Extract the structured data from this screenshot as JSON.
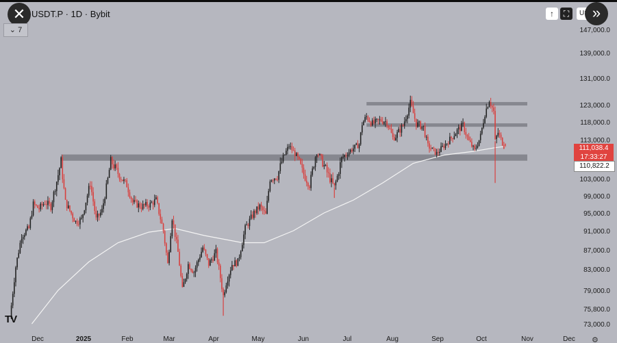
{
  "header": {
    "symbol_line": "USDT.P · 1D · Bybit",
    "indicator_count": "7",
    "close_icon": "close-icon",
    "expand_icon": "chevrons-right-icon",
    "currency_short": "US"
  },
  "price_tags": {
    "last_price": "111,038.4",
    "countdown": "17:33:27",
    "ma_value": "110,822.2"
  },
  "colors": {
    "background": "#b6b7bf",
    "up": "#222222",
    "down": "#d8403e",
    "ma": "#f4f4f4",
    "zone": "#7e7f86"
  },
  "chart_data": {
    "type": "candlestick",
    "x_ticks": [
      "Dec",
      "2025",
      "Feb",
      "Mar",
      "Apr",
      "May",
      "Jun",
      "Jul",
      "Aug",
      "Sep",
      "Oct",
      "Nov",
      "Dec"
    ],
    "y_ticks": [
      "147,000.0",
      "139,000.0",
      "131,000.0",
      "123,000.0",
      "118,000.0",
      "113,000.0",
      "107,000.0",
      "103,000.0",
      "99,000.0",
      "95,000.0",
      "91,000.0",
      "87,000.0",
      "83,000.0",
      "79,000.0",
      "75,800.0",
      "73,000.0"
    ],
    "y_tick_values": [
      147000,
      139000,
      131000,
      123000,
      118000,
      113000,
      107000,
      103000,
      99000,
      95000,
      91000,
      87000,
      83000,
      79000,
      75800,
      73000
    ],
    "grid": false,
    "price_path": [
      [
        "2024-11-12",
        74000
      ],
      [
        "2024-11-16",
        83500
      ],
      [
        "2024-11-20",
        90000
      ],
      [
        "2024-11-25",
        91500
      ],
      [
        "2024-11-28",
        97000
      ],
      [
        "2024-12-02",
        96000
      ],
      [
        "2024-12-06",
        97500
      ],
      [
        "2024-12-10",
        96500
      ],
      [
        "2024-12-13",
        101000
      ],
      [
        "2024-12-17",
        106500
      ],
      [
        "2024-12-20",
        97500
      ],
      [
        "2024-12-23",
        95500
      ],
      [
        "2024-12-27",
        93000
      ],
      [
        "2024-12-31",
        93500
      ],
      [
        "2025-01-06",
        102000
      ],
      [
        "2025-01-10",
        93500
      ],
      [
        "2025-01-14",
        95500
      ],
      [
        "2025-01-20",
        106500
      ],
      [
        "2025-01-24",
        104500
      ],
      [
        "2025-01-31",
        101500
      ],
      [
        "2025-02-04",
        97500
      ],
      [
        "2025-02-10",
        96500
      ],
      [
        "2025-02-16",
        97000
      ],
      [
        "2025-02-20",
        98000
      ],
      [
        "2025-02-25",
        91000
      ],
      [
        "2025-02-28",
        84000
      ],
      [
        "2025-03-03",
        94000
      ],
      [
        "2025-03-07",
        86500
      ],
      [
        "2025-03-10",
        79000
      ],
      [
        "2025-03-14",
        84000
      ],
      [
        "2025-03-18",
        82500
      ],
      [
        "2025-03-24",
        87500
      ],
      [
        "2025-03-28",
        84000
      ],
      [
        "2025-04-02",
        86500
      ],
      [
        "2025-04-07",
        78000
      ],
      [
        "2025-04-09",
        80500
      ],
      [
        "2025-04-13",
        84000
      ],
      [
        "2025-04-17",
        84500
      ],
      [
        "2025-04-22",
        91500
      ],
      [
        "2025-04-28",
        95000
      ],
      [
        "2025-05-02",
        96500
      ],
      [
        "2025-05-06",
        94500
      ],
      [
        "2025-05-09",
        103000
      ],
      [
        "2025-05-14",
        103500
      ],
      [
        "2025-05-22",
        111000
      ],
      [
        "2025-05-26",
        108500
      ],
      [
        "2025-05-31",
        104500
      ],
      [
        "2025-06-05",
        101500
      ],
      [
        "2025-06-10",
        109000
      ],
      [
        "2025-06-15",
        105500
      ],
      [
        "2025-06-22",
        101000
      ],
      [
        "2025-06-27",
        107000
      ],
      [
        "2025-07-03",
        109500
      ],
      [
        "2025-07-09",
        111500
      ],
      [
        "2025-07-11",
        117500
      ],
      [
        "2025-07-14",
        119500
      ],
      [
        "2025-07-18",
        117500
      ],
      [
        "2025-07-24",
        118500
      ],
      [
        "2025-07-28",
        118000
      ],
      [
        "2025-08-01",
        113500
      ],
      [
        "2025-08-03",
        114000
      ],
      [
        "2025-08-08",
        117000
      ],
      [
        "2025-08-13",
        123500
      ],
      [
        "2025-08-17",
        117500
      ],
      [
        "2025-08-22",
        116500
      ],
      [
        "2025-08-25",
        111000
      ],
      [
        "2025-08-31",
        108500
      ],
      [
        "2025-09-05",
        111000
      ],
      [
        "2025-09-10",
        113500
      ],
      [
        "2025-09-14",
        115500
      ],
      [
        "2025-09-18",
        117000
      ],
      [
        "2025-09-22",
        112500
      ],
      [
        "2025-09-26",
        109500
      ],
      [
        "2025-09-30",
        114000
      ],
      [
        "2025-10-03",
        120500
      ],
      [
        "2025-10-06",
        124500
      ],
      [
        "2025-10-09",
        121000
      ],
      [
        "2025-10-10",
        112500
      ],
      [
        "2025-10-12",
        115000
      ],
      [
        "2025-10-14",
        113000
      ],
      [
        "2025-10-16",
        111000
      ]
    ],
    "last_candle": {
      "date": "2025-10-17",
      "open": 111500,
      "high": 111800,
      "low": 110600,
      "close": 111038.4
    },
    "wicks": [
      {
        "date": "2025-10-10",
        "low": 102000
      },
      {
        "date": "2025-06-22",
        "low": 98500
      },
      {
        "date": "2025-04-07",
        "low": 74500
      }
    ],
    "moving_average": [
      [
        "2024-11-27",
        73000
      ],
      [
        "2024-12-15",
        79000
      ],
      [
        "2025-01-05",
        84500
      ],
      [
        "2025-01-25",
        88500
      ],
      [
        "2025-02-15",
        90700
      ],
      [
        "2025-03-05",
        91500
      ],
      [
        "2025-03-25",
        90000
      ],
      [
        "2025-04-20",
        88500
      ],
      [
        "2025-05-05",
        88500
      ],
      [
        "2025-05-25",
        91000
      ],
      [
        "2025-06-15",
        95000
      ],
      [
        "2025-07-05",
        98000
      ],
      [
        "2025-07-25",
        102000
      ],
      [
        "2025-08-15",
        106000
      ],
      [
        "2025-09-05",
        108000
      ],
      [
        "2025-09-25",
        109200
      ],
      [
        "2025-10-10",
        110400
      ],
      [
        "2025-10-17",
        110822.2
      ]
    ],
    "zones": [
      {
        "start": "2024-12-17",
        "end": "2025-11-01",
        "low": 106500,
        "high": 108200
      },
      {
        "start": "2025-07-14",
        "end": "2025-11-01",
        "low": 122800,
        "high": 123400
      },
      {
        "start": "2025-07-14",
        "end": "2025-11-01",
        "low": 116600,
        "high": 117200
      }
    ]
  }
}
